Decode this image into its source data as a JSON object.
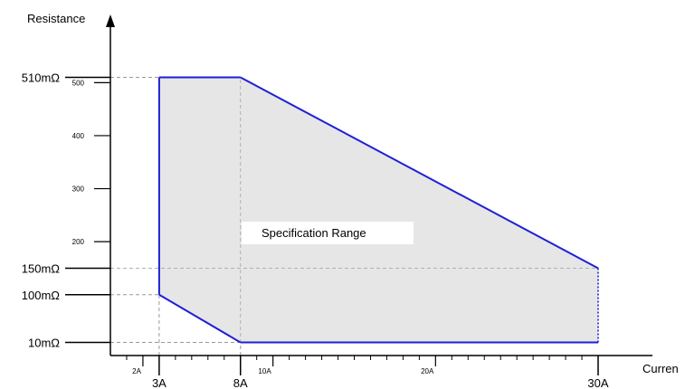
{
  "chart_data": {
    "type": "area",
    "title": "",
    "xlabel": "Curren",
    "ylabel": "Resistance",
    "annotation": "Specification Range",
    "colors": {
      "region_fill": "#e6e6e6",
      "boundary": "#1f1fd6",
      "guide": "#999999",
      "axis": "#000000"
    },
    "x_axis": {
      "min": 0,
      "max": 30.5,
      "major_ticks": [
        {
          "value": 3,
          "label": "3A"
        },
        {
          "value": 8,
          "label": "8A"
        },
        {
          "value": 30,
          "label": "30A"
        }
      ],
      "minor_ticks": [
        {
          "value": 2,
          "label": "2A"
        },
        {
          "value": 10,
          "label": "10A"
        },
        {
          "value": 20,
          "label": "20A"
        }
      ],
      "unlabeled_ticks": [
        1,
        4,
        5,
        6,
        7,
        9,
        11,
        12,
        13,
        14,
        15,
        16,
        17,
        18,
        19,
        21,
        22,
        23,
        24,
        25,
        26,
        27,
        28,
        29
      ]
    },
    "y_axis": {
      "min": 0,
      "max": 540,
      "major_ticks": [
        {
          "value": 10,
          "label": "10mΩ"
        },
        {
          "value": 100,
          "label": "100mΩ"
        },
        {
          "value": 150,
          "label": "150mΩ"
        },
        {
          "value": 510,
          "label": "510mΩ"
        }
      ],
      "minor_ticks": [
        {
          "value": 200,
          "label": "200"
        },
        {
          "value": 300,
          "label": "300"
        },
        {
          "value": 400,
          "label": "400"
        },
        {
          "value": 500,
          "label": "500"
        }
      ]
    },
    "region": [
      {
        "x": 3,
        "y": 100
      },
      {
        "x": 3,
        "y": 510
      },
      {
        "x": 8,
        "y": 510
      },
      {
        "x": 30,
        "y": 150
      },
      {
        "x": 30,
        "y": 10
      },
      {
        "x": 8,
        "y": 10
      }
    ],
    "guides": [
      {
        "from": {
          "x": 0,
          "y": 510
        },
        "to": {
          "x": 3,
          "y": 510
        }
      },
      {
        "from": {
          "x": 0,
          "y": 100
        },
        "to": {
          "x": 3,
          "y": 100
        }
      },
      {
        "from": {
          "x": 0,
          "y": 150
        },
        "to": {
          "x": 30,
          "y": 150
        }
      },
      {
        "from": {
          "x": 0,
          "y": 10
        },
        "to": {
          "x": 8,
          "y": 10
        }
      },
      {
        "from": {
          "x": 3,
          "y": 0
        },
        "to": {
          "x": 3,
          "y": 100
        }
      },
      {
        "from": {
          "x": 8,
          "y": 0
        },
        "to": {
          "x": 8,
          "y": 510
        }
      }
    ]
  }
}
